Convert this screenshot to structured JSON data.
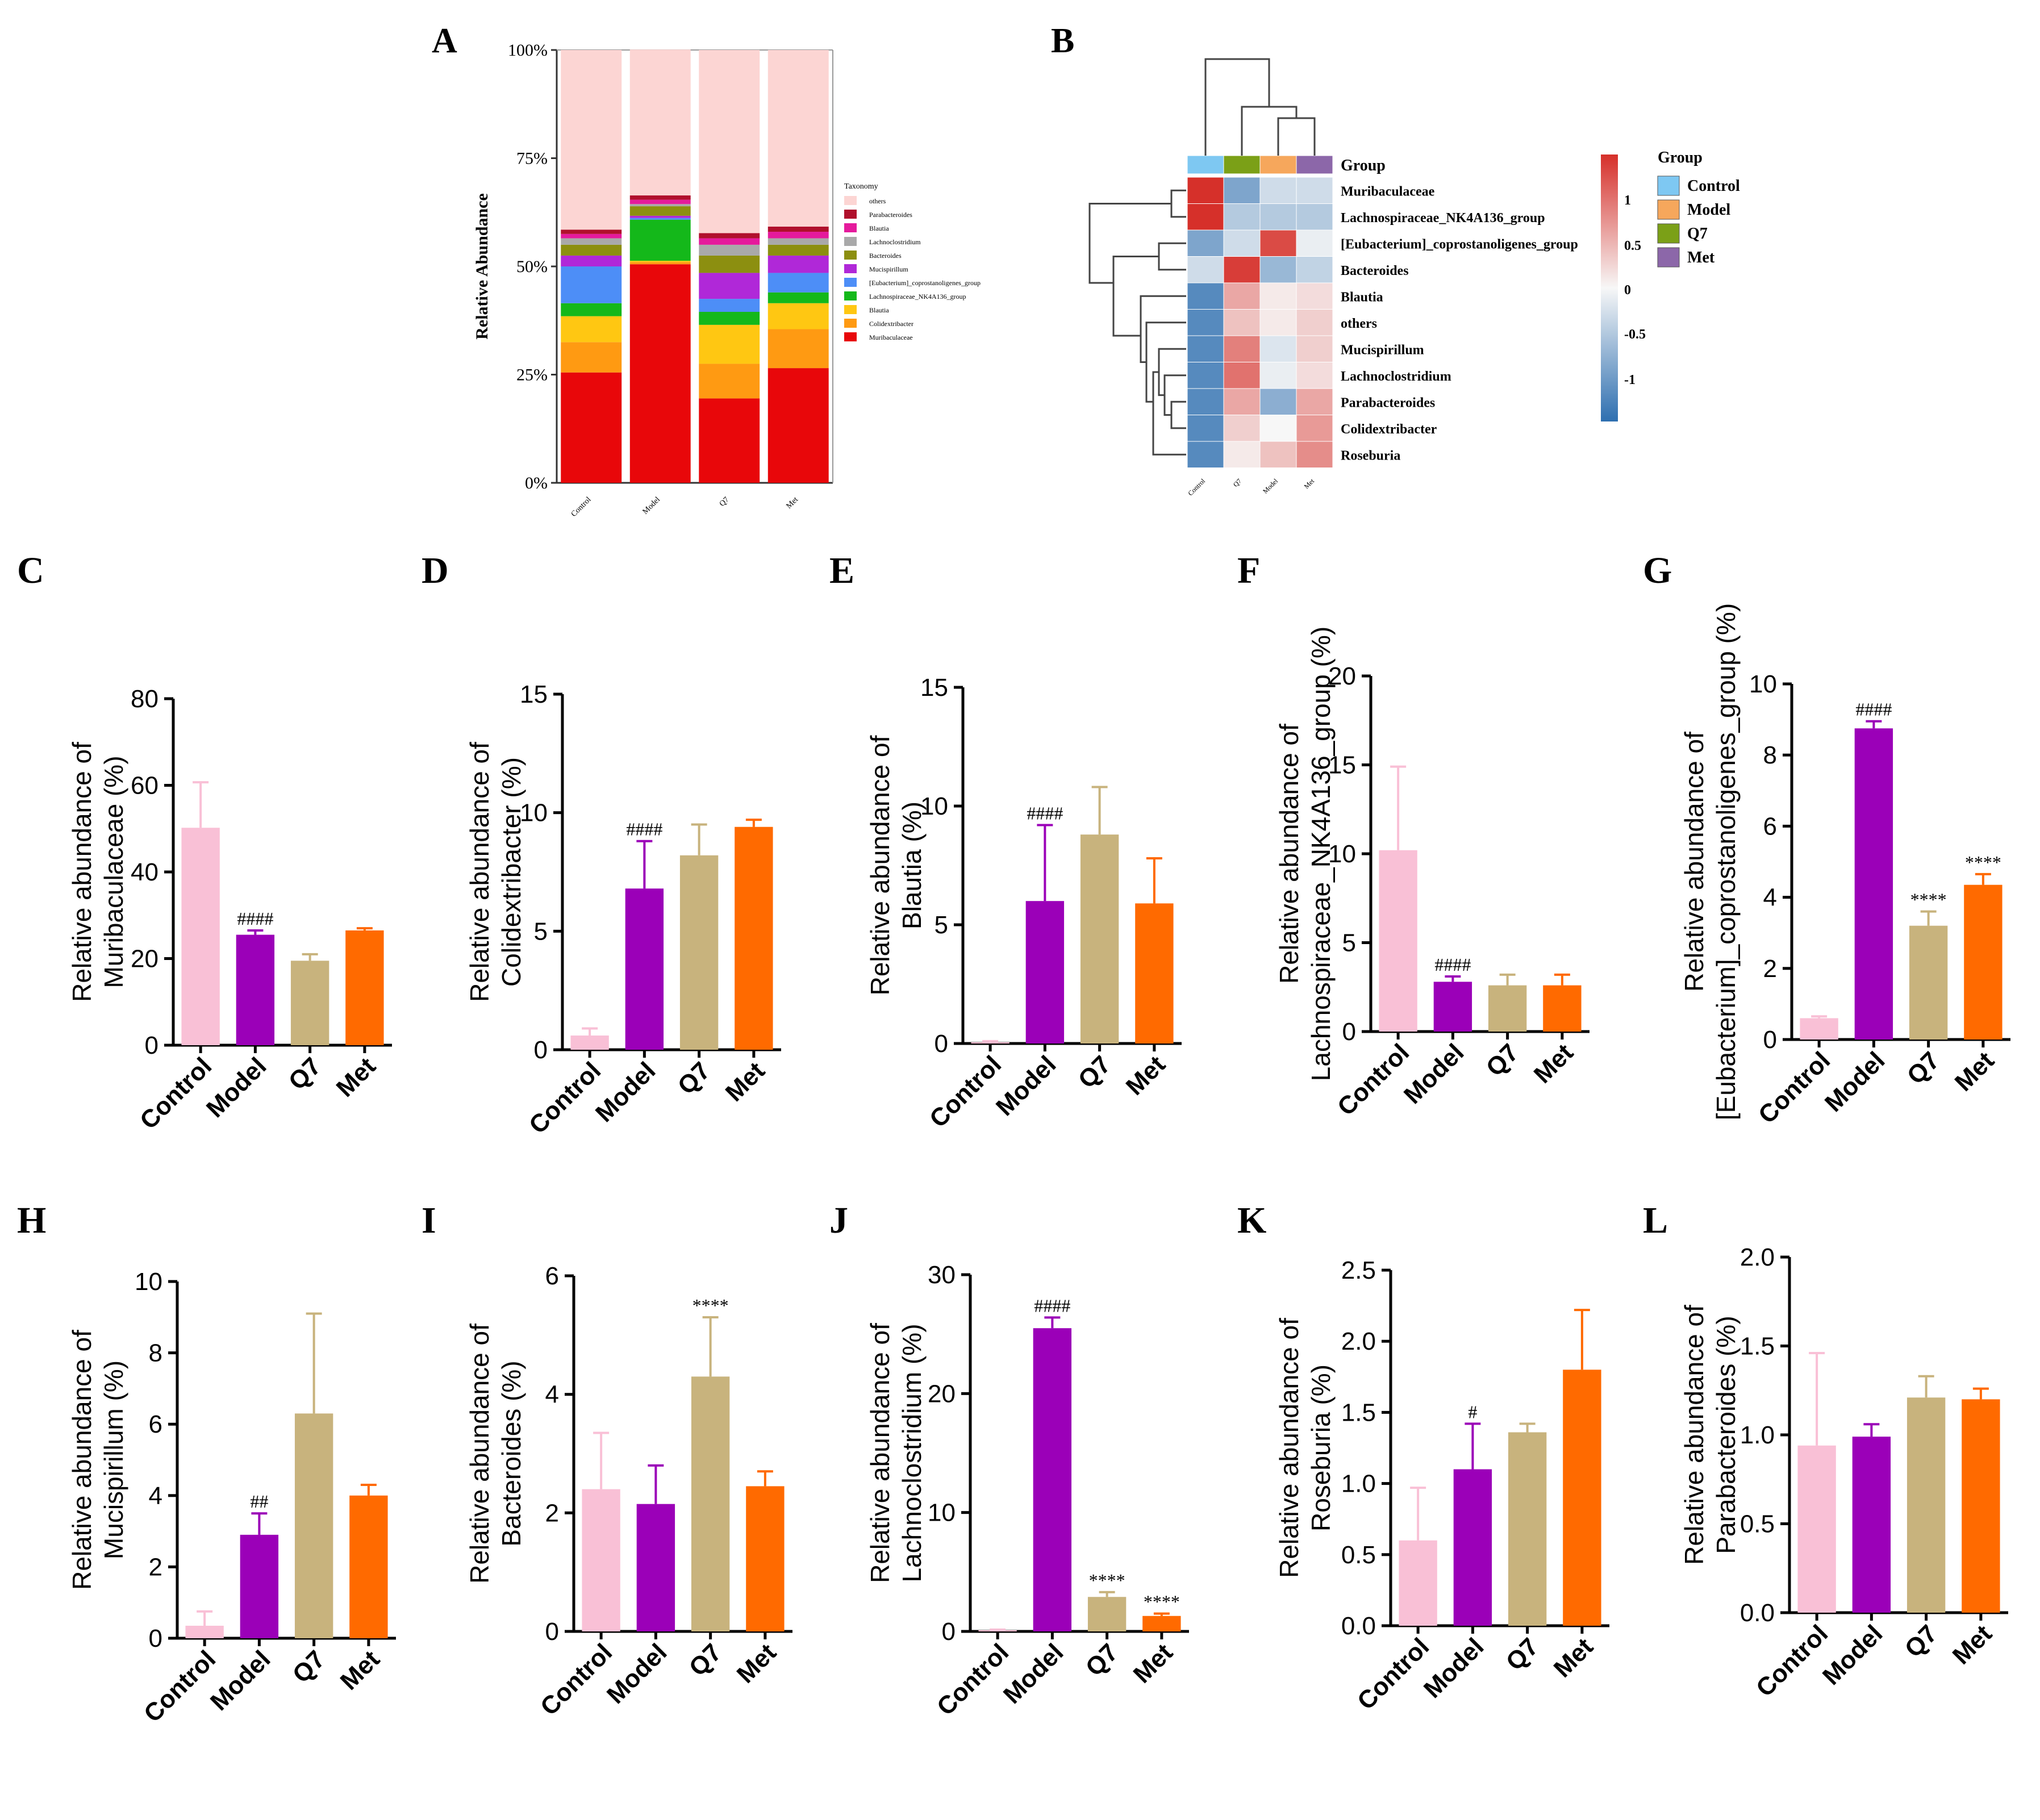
{
  "colors": {
    "Control": "#f9c0d6",
    "Model": "#9b00b8",
    "Q7": "#c8b37d",
    "Met": "#ff6a00",
    "hm_low": "#2e6fb0",
    "hm_mid": "#f7f7f7",
    "hm_high": "#d6302a",
    "grp_Control": "#7ec8f2",
    "grp_Model": "#f6a75c",
    "grp_Q7": "#7ba017",
    "grp_Met": "#8c67a9"
  },
  "chart_data": [
    {
      "id": "A",
      "type": "bar",
      "stacked": true,
      "panel_label": "A",
      "ylabel": "Relative Abundance",
      "yticks": [
        "0%",
        "25%",
        "50%",
        "75%",
        "100%"
      ],
      "ylim": [
        0,
        100
      ],
      "categories": [
        "Control",
        "Model",
        "Q7",
        "Met"
      ],
      "legend_title": "Taxonomy",
      "series": [
        {
          "name": "Muribaculaceae",
          "color": "#e8070a",
          "values": [
            25.5,
            50.5,
            19.5,
            26.5
          ]
        },
        {
          "name": "Colidextribacter",
          "color": "#ff9a12",
          "values": [
            7,
            0.5,
            8,
            9
          ]
        },
        {
          "name": "Blautia",
          "color": "#ffc712",
          "values": [
            6,
            0.3,
            9,
            6
          ]
        },
        {
          "name": "Lachnospiraceae_NK4A136_group",
          "color": "#14b81a",
          "values": [
            3,
            9.5,
            3,
            2.5
          ]
        },
        {
          "name": "[Eubacterium]_coprostanoligenes_group",
          "color": "#4d8ef7",
          "values": [
            8.5,
            0.4,
            3,
            4.5
          ]
        },
        {
          "name": "Mucispirillum",
          "color": "#b028d8",
          "values": [
            2.5,
            0.5,
            6,
            4
          ]
        },
        {
          "name": "Bacteroides",
          "color": "#8c8f10",
          "values": [
            2.5,
            2.2,
            4,
            2.5
          ]
        },
        {
          "name": "Lachnoclostridium",
          "color": "#a9a9a9",
          "values": [
            1.5,
            0.5,
            2.5,
            1.5
          ]
        },
        {
          "name": "Blautia",
          "color": "#e51a9c",
          "values": [
            1,
            1,
            1.5,
            1.5
          ]
        },
        {
          "name": "Parabacteroides",
          "color": "#b0102c",
          "values": [
            1,
            1,
            1.2,
            1.2
          ]
        },
        {
          "name": "others",
          "color": "#fcd5d3",
          "values": [
            41.5,
            33.7,
            42.3,
            40.8
          ]
        }
      ]
    },
    {
      "id": "B",
      "type": "heatmap",
      "panel_label": "B",
      "columns": [
        "Control",
        "Q7",
        "Model",
        "Met"
      ],
      "column_groups": [
        "Control",
        "Q7",
        "Model",
        "Met"
      ],
      "rows": [
        "Muribaculaceae",
        "Lachnospiraceae_NK4A136_group",
        "[Eubacterium]_coprostanoligenes_group",
        "Bacteroides",
        "Blautia",
        "others",
        "Mucispirillum",
        "Lachnoclostridium",
        "Parabacteroides",
        "Colidextribacter",
        "Roseburia"
      ],
      "values": [
        [
          1.5,
          -0.9,
          -0.3,
          -0.3
        ],
        [
          1.5,
          -0.5,
          -0.5,
          -0.5
        ],
        [
          -0.9,
          -0.3,
          1.3,
          -0.1
        ],
        [
          -0.3,
          1.4,
          -0.7,
          -0.4
        ],
        [
          -1.2,
          0.6,
          0.1,
          0.2
        ],
        [
          -1.2,
          0.4,
          0.1,
          0.3
        ],
        [
          -1.2,
          0.9,
          -0.2,
          0.3
        ],
        [
          -1.2,
          1.0,
          -0.1,
          0.2
        ],
        [
          -1.2,
          0.6,
          -0.8,
          0.6
        ],
        [
          -1.2,
          0.3,
          0.0,
          0.7
        ],
        [
          -1.2,
          0.1,
          0.4,
          0.8
        ]
      ],
      "legend_title": "Group",
      "legend_items": [
        "Control",
        "Model",
        "Q7",
        "Met"
      ],
      "group_label": "Group",
      "colorbar_ticks": [
        "1",
        "0.5",
        "0",
        "-0.5",
        "-1"
      ],
      "colorbar_range": [
        -1.5,
        1.5
      ]
    },
    {
      "id": "C",
      "type": "bar",
      "panel_label": "C",
      "ylabel_line1": "Relative abundance of",
      "ylabel_line2": "Muribaculaceae (%)",
      "categories": [
        "Control",
        "Model",
        "Q7",
        "Met"
      ],
      "values": [
        50.2,
        25.5,
        19.5,
        26.5
      ],
      "errors": [
        10.5,
        1.0,
        1.5,
        0.5
      ],
      "ylim": [
        0,
        80
      ],
      "yticks": [
        "0",
        "20",
        "40",
        "60",
        "80"
      ],
      "annotations": [
        "",
        "####",
        "",
        ""
      ]
    },
    {
      "id": "D",
      "type": "bar",
      "panel_label": "D",
      "ylabel_line1": "Relative abundance of",
      "ylabel_line2": "Colidextribacter (%)",
      "categories": [
        "Control",
        "Model",
        "Q7",
        "Met"
      ],
      "values": [
        0.6,
        6.8,
        8.2,
        9.4
      ],
      "errors": [
        0.3,
        2.0,
        1.3,
        0.3
      ],
      "ylim": [
        0,
        15
      ],
      "yticks": [
        "0",
        "5",
        "10",
        "15"
      ],
      "annotations": [
        "",
        "####",
        "",
        ""
      ]
    },
    {
      "id": "E",
      "type": "bar",
      "panel_label": "E",
      "ylabel_line1": "Relative abundance of",
      "ylabel_line2": "Blautia (%)",
      "categories": [
        "Control",
        "Model",
        "Q7",
        "Met"
      ],
      "values": [
        0.05,
        6.0,
        8.8,
        5.9
      ],
      "errors": [
        0.05,
        3.2,
        2.0,
        1.9
      ],
      "ylim": [
        0,
        15
      ],
      "yticks": [
        "0",
        "5",
        "10",
        "15"
      ],
      "annotations": [
        "",
        "####",
        "",
        ""
      ]
    },
    {
      "id": "F",
      "type": "bar",
      "panel_label": "F",
      "ylabel_line1": "Relative abundance of",
      "ylabel_line2": "Lachnospiraceae_NK4A136_group (%)",
      "categories": [
        "Control",
        "Model",
        "Q7",
        "Met"
      ],
      "values": [
        10.2,
        2.8,
        2.6,
        2.6
      ],
      "errors": [
        4.7,
        0.3,
        0.6,
        0.6
      ],
      "ylim": [
        0,
        20
      ],
      "yticks": [
        "0",
        "5",
        "10",
        "15",
        "20"
      ],
      "annotations": [
        "",
        "####",
        "",
        ""
      ]
    },
    {
      "id": "G",
      "type": "bar",
      "panel_label": "G",
      "ylabel_line1": "Relative abundance of",
      "ylabel_line2": "[Eubacterium]_coprostanoligenes_group (%)",
      "categories": [
        "Control",
        "Model",
        "Q7",
        "Met"
      ],
      "values": [
        0.6,
        8.75,
        3.2,
        4.35
      ],
      "errors": [
        0.05,
        0.2,
        0.4,
        0.3
      ],
      "ylim": [
        0,
        10
      ],
      "yticks": [
        "0",
        "2",
        "4",
        "6",
        "8",
        "10"
      ],
      "annotations": [
        "",
        "####",
        "****",
        "****"
      ]
    },
    {
      "id": "H",
      "type": "bar",
      "panel_label": "H",
      "ylabel_line1": "Relative abundance of",
      "ylabel_line2": "Mucispirillum (%)",
      "categories": [
        "Control",
        "Model",
        "Q7",
        "Met"
      ],
      "values": [
        0.35,
        2.9,
        6.3,
        4.0
      ],
      "errors": [
        0.4,
        0.6,
        2.8,
        0.3
      ],
      "ylim": [
        0,
        10
      ],
      "yticks": [
        "0",
        "2",
        "4",
        "6",
        "8",
        "10"
      ],
      "annotations": [
        "",
        "##",
        "",
        ""
      ]
    },
    {
      "id": "I",
      "type": "bar",
      "panel_label": "I",
      "ylabel_line1": "Relative abundance of",
      "ylabel_line2": "Bacteroides (%)",
      "categories": [
        "Control",
        "Model",
        "Q7",
        "Met"
      ],
      "values": [
        2.4,
        2.15,
        4.3,
        2.45
      ],
      "errors": [
        0.95,
        0.65,
        1.0,
        0.25
      ],
      "ylim": [
        0,
        6
      ],
      "yticks": [
        "0",
        "2",
        "4",
        "6"
      ],
      "annotations": [
        "",
        "",
        "****",
        ""
      ]
    },
    {
      "id": "J",
      "type": "bar",
      "panel_label": "J",
      "ylabel_line1": "Relative abundance of",
      "ylabel_line2": "Lachnoclostridium (%)",
      "categories": [
        "Control",
        "Model",
        "Q7",
        "Met"
      ],
      "values": [
        0.1,
        25.5,
        2.9,
        1.3
      ],
      "errors": [
        0.05,
        0.9,
        0.4,
        0.2
      ],
      "ylim": [
        0,
        30
      ],
      "yticks": [
        "0",
        "10",
        "20",
        "30"
      ],
      "annotations": [
        "",
        "####",
        "****",
        "****"
      ]
    },
    {
      "id": "K",
      "type": "bar",
      "panel_label": "K",
      "ylabel_line1": "Relative abundance of",
      "ylabel_line2": "Roseburia (%)",
      "categories": [
        "Control",
        "Model",
        "Q7",
        "Met"
      ],
      "values": [
        0.6,
        1.1,
        1.36,
        1.8
      ],
      "errors": [
        0.37,
        0.32,
        0.06,
        0.42
      ],
      "ylim": [
        0,
        2.5
      ],
      "yticks": [
        "0.0",
        "0.5",
        "1.0",
        "1.5",
        "2.0",
        "2.5"
      ],
      "annotations": [
        "",
        "#",
        "",
        ""
      ]
    },
    {
      "id": "L",
      "type": "bar",
      "panel_label": "L",
      "ylabel_line1": "Relative abundance of",
      "ylabel_line2": "Parabacteroides (%)",
      "categories": [
        "Control",
        "Model",
        "Q7",
        "Met"
      ],
      "values": [
        0.94,
        0.99,
        1.21,
        1.2
      ],
      "errors": [
        0.52,
        0.07,
        0.12,
        0.06
      ],
      "ylim": [
        0,
        2.0
      ],
      "yticks": [
        "0.0",
        "0.5",
        "1.0",
        "1.5",
        "2.0"
      ],
      "annotations": [
        "",
        "",
        "",
        ""
      ]
    }
  ]
}
